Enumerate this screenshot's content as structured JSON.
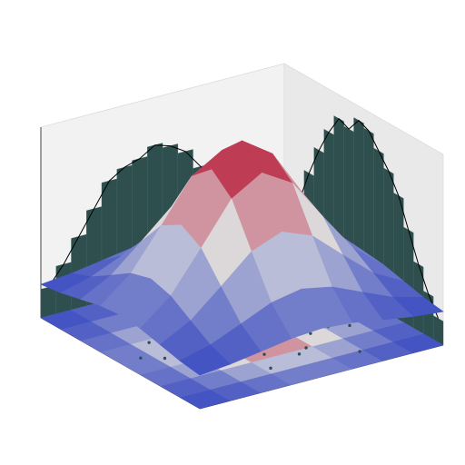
{
  "chart_data": {
    "type": "surface3d",
    "colormap": "coolwarm",
    "xlim": [
      -3,
      3
    ],
    "ylim": [
      -3,
      3
    ],
    "zlim": [
      -0.2,
      1.0
    ],
    "surface": {
      "x": [
        -3,
        -2.25,
        -1.5,
        -0.75,
        0,
        0.75,
        1.5,
        2.25,
        3
      ],
      "y": [
        -3,
        -2.25,
        -1.5,
        -0.75,
        0,
        0.75,
        1.5,
        2.25,
        3
      ],
      "z": [
        [
          0.011,
          0.03,
          0.06,
          0.091,
          0.105,
          0.091,
          0.06,
          0.03,
          0.011
        ],
        [
          0.03,
          0.08,
          0.161,
          0.245,
          0.282,
          0.245,
          0.161,
          0.08,
          0.03
        ],
        [
          0.06,
          0.161,
          0.325,
          0.495,
          0.57,
          0.495,
          0.325,
          0.161,
          0.06
        ],
        [
          0.091,
          0.245,
          0.495,
          0.755,
          0.869,
          0.755,
          0.495,
          0.245,
          0.091
        ],
        [
          0.105,
          0.282,
          0.57,
          0.869,
          1.0,
          0.869,
          0.57,
          0.282,
          0.105
        ],
        [
          0.091,
          0.245,
          0.495,
          0.755,
          0.869,
          0.755,
          0.495,
          0.245,
          0.091
        ],
        [
          0.06,
          0.161,
          0.325,
          0.495,
          0.57,
          0.495,
          0.325,
          0.161,
          0.06
        ],
        [
          0.03,
          0.08,
          0.161,
          0.245,
          0.282,
          0.245,
          0.161,
          0.08,
          0.03
        ],
        [
          0.011,
          0.03,
          0.06,
          0.091,
          0.105,
          0.091,
          0.06,
          0.03,
          0.011
        ]
      ]
    },
    "hist_lim": [
      0,
      40
    ],
    "hist_color": "#2f4f4f",
    "hist_x": {
      "bins": [
        -3,
        -2.625,
        -2.25,
        -1.875,
        -1.5,
        -1.125,
        -0.75,
        -0.375,
        0,
        0.375,
        0.75,
        1.125,
        1.5,
        1.875,
        2.25,
        2.625,
        3
      ],
      "counts": [
        5,
        9,
        14,
        20,
        26,
        30,
        33,
        36,
        37,
        34,
        35,
        31,
        26,
        20,
        13,
        8
      ]
    },
    "hist_y": {
      "bins": [
        -3,
        -2.625,
        -2.25,
        -1.875,
        -1.5,
        -1.125,
        -0.75,
        -0.375,
        0,
        0.375,
        0.75,
        1.125,
        1.5,
        1.875,
        2.25,
        2.625,
        3
      ],
      "counts": [
        6,
        10,
        15,
        20,
        25,
        27,
        28,
        30,
        29,
        27,
        23,
        18,
        13,
        9,
        6,
        3
      ]
    },
    "points": {
      "color": "#2f4f4f",
      "x": [
        0.3,
        -0.5,
        1.2,
        -1.1,
        0.1,
        0.8,
        -0.2,
        1.6,
        -1.7,
        0.5,
        -0.8,
        0.0,
        2.1,
        -0.4,
        0.9,
        -1.3,
        0.6,
        -0.1,
        1.4,
        -2.0,
        0.2,
        -0.6,
        1.0,
        -0.9,
        0.4,
        -1.5,
        1.8,
        -0.3,
        0.7,
        -1.0,
        0.3,
        1.1,
        -0.7,
        -2.3,
        2.4,
        0.0,
        -0.2,
        0.5,
        1.3,
        -1.2
      ],
      "y": [
        0.2,
        0.7,
        -0.4,
        -0.9,
        1.3,
        0.5,
        -1.4,
        0.9,
        0.3,
        -0.7,
        1.6,
        -0.2,
        -1.1,
        0.4,
        1.8,
        -0.3,
        -1.9,
        0.8,
        0.1,
        -0.6,
        2.2,
        -1.2,
        1.0,
        1.1,
        -0.1,
        0.6,
        -0.8,
        -2.1,
        -1.0,
        2.0,
        0.9,
        -1.6,
        -0.5,
        1.4,
        0.6,
        -2.5,
        2.5,
        1.5,
        -0.2,
        -1.5
      ]
    }
  }
}
